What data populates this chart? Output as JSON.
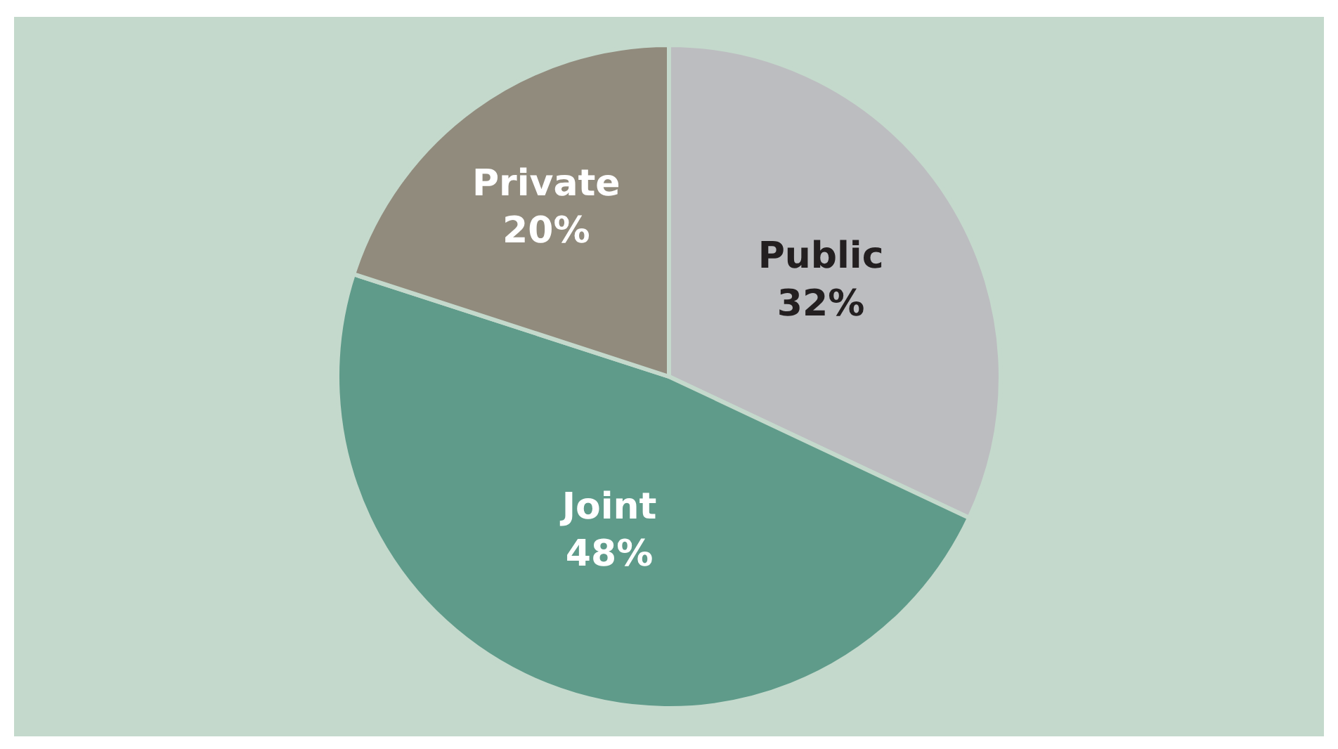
{
  "chart_data": {
    "type": "pie",
    "categories": [
      "Public",
      "Joint",
      "Private"
    ],
    "values": [
      32,
      48,
      20
    ],
    "value_labels": [
      "32%",
      "48%",
      "20%"
    ],
    "colors": [
      "#bcbdc0",
      "#5f9b8a",
      "#918b7d"
    ],
    "legend": false
  }
}
